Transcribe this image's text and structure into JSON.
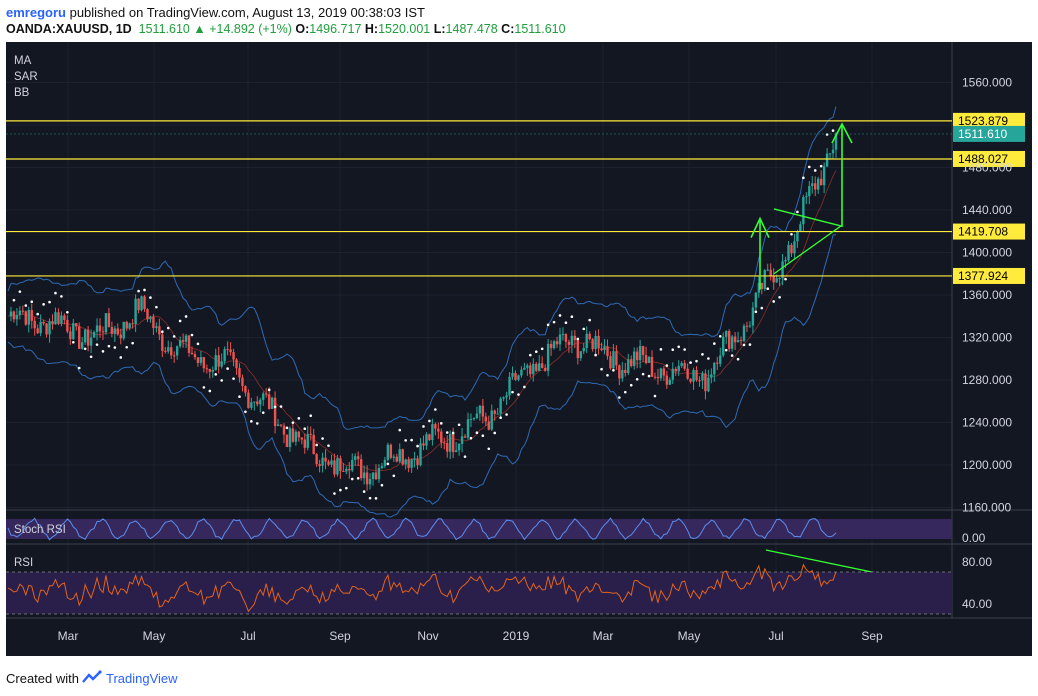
{
  "header": {
    "user": "emregoru",
    "published_text": "published on TradingView.com, August 13, 2019 00:38:03 IST",
    "symbol": "OANDA:XAUUSD, 1D",
    "price": "1511.610",
    "change": "▲ +14.892 (+1%)",
    "o_label": "O:",
    "o_value": "1496.717",
    "h_label": "H:",
    "h_value": "1520.001",
    "l_label": "L:",
    "l_value": "1487.478",
    "c_label": "C:",
    "c_value": "1511.610"
  },
  "indicators": [
    "MA",
    "SAR",
    "BB"
  ],
  "price_axis": [
    "1560.000",
    "1480.000",
    "1440.000",
    "1400.000",
    "1360.000",
    "1320.000",
    "1280.000",
    "1240.000",
    "1200.000",
    "1160.000"
  ],
  "level_labels": [
    {
      "label": "1523.879",
      "value": 1523.879
    },
    {
      "label": "1488.027",
      "value": 1488.027
    },
    {
      "label": "1419.708",
      "value": 1419.708
    },
    {
      "label": "1377.924",
      "value": 1377.924
    }
  ],
  "current_price_label": "1511.610",
  "stoch": {
    "name": "Stoch RSI",
    "axis": "0.00"
  },
  "rsi": {
    "name": "RSI",
    "axis_top": "80.00",
    "axis_bottom": "40.00"
  },
  "time_axis": [
    "Mar",
    "May",
    "Jul",
    "Sep",
    "Nov",
    "2019",
    "Mar",
    "May",
    "Jul",
    "Sep"
  ],
  "footer": {
    "created": "Created with",
    "brand": "TradingView"
  },
  "colors": {
    "background": "#131722",
    "level_line": "#ffeb3b",
    "annotation": "#33ff33",
    "bollinger": "#2e6ab4",
    "rsi_line": "#e0641c",
    "rsi_band": "#2a1e4a",
    "current_price": "#26a69a"
  },
  "chart_data": {
    "type": "candlestick",
    "symbol": "OANDA:XAUUSD",
    "interval": "1D",
    "y_range": [
      1150,
      1580
    ],
    "approx_close_path": [
      {
        "x": "Jan",
        "y": 1340
      },
      {
        "x": "Feb",
        "y": 1335
      },
      {
        "x": "Mar",
        "y": 1320
      },
      {
        "x": "Apr",
        "y": 1345
      },
      {
        "x": "May",
        "y": 1305
      },
      {
        "x": "Jun",
        "y": 1295
      },
      {
        "x": "Jul",
        "y": 1250
      },
      {
        "x": "Aug",
        "y": 1210
      },
      {
        "x": "Sep",
        "y": 1195
      },
      {
        "x": "Oct",
        "y": 1210
      },
      {
        "x": "Nov",
        "y": 1225
      },
      {
        "x": "Dec",
        "y": 1245
      },
      {
        "x": "2019",
        "y": 1290
      },
      {
        "x": "Feb",
        "y": 1320
      },
      {
        "x": "Mar",
        "y": 1300
      },
      {
        "x": "Apr",
        "y": 1290
      },
      {
        "x": "May",
        "y": 1285
      },
      {
        "x": "Jun",
        "y": 1340
      },
      {
        "x": "Jul",
        "y": 1410
      },
      {
        "x": "Aug",
        "y": 1511.61
      }
    ]
  }
}
